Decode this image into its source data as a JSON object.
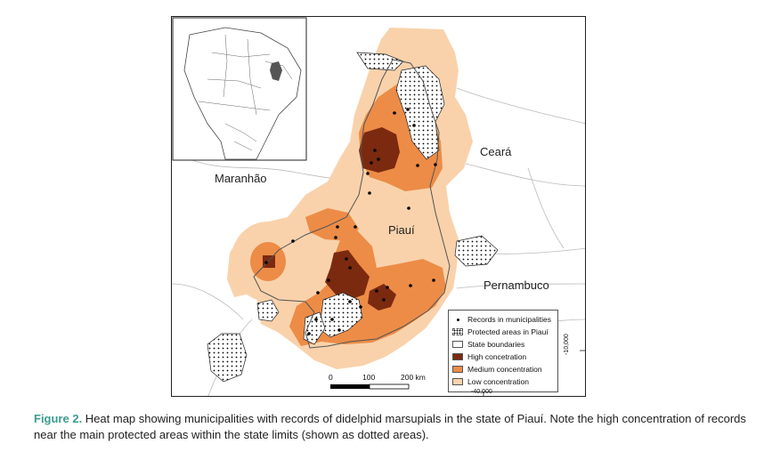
{
  "map": {
    "regions": [
      "Maranhão",
      "Ceará",
      "Piauí",
      "Pernambuco"
    ],
    "legend": {
      "records": "Records in municipalities",
      "protected": "Protected areas in Piauí",
      "boundaries": "State boundaries",
      "high": "High concetration",
      "medium": "Medium concentration",
      "low": "Low concentration"
    },
    "scale": {
      "t0": "0",
      "t1": "100",
      "t2": "200 km"
    },
    "coords": {
      "lat": "-10,000",
      "lon": "-40,000"
    },
    "colors": {
      "high": "#7b2a10",
      "medium": "#ec8c47",
      "low": "#f9d2ab",
      "caption_label": "#3c9b8f"
    }
  },
  "caption": {
    "label": "Figure 2.",
    "text": " Heat map showing municipalities with records of didelphid marsupials in the state of Piauí. Note the high concentration of records near the main protected areas within the state limits (shown as dotted areas)."
  }
}
